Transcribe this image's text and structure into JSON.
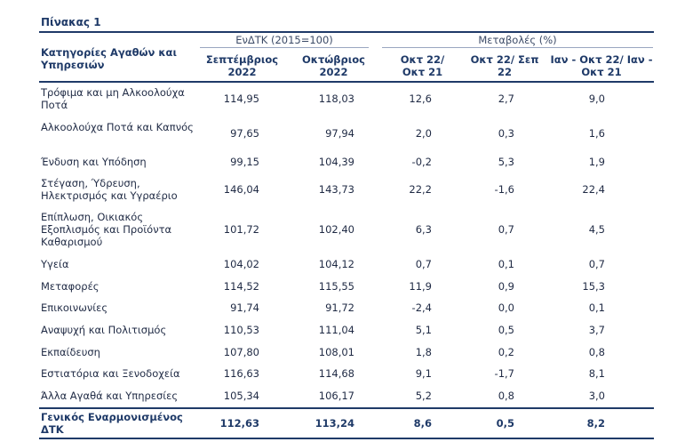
{
  "title": "Πίνακας 1",
  "header": {
    "category": "Κατηγορίες Αγαθών και Υπηρεσιών",
    "group_index": "ΕνΔΤΚ (2015=100)",
    "group_changes": "Μεταβολές (%)",
    "cols": [
      "Σεπτέμβριος 2022",
      "Οκτώβριος 2022",
      "Οκτ 22/ Οκτ 21",
      "Οκτ 22/ Σεπ 22",
      "Ιαν - Οκτ 22/ Ιαν - Οκτ 21"
    ]
  },
  "rows": [
    {
      "label": "Τρόφιμα και μη Αλκοολούχα Ποτά",
      "v": [
        "114,95",
        "118,03",
        "12,6",
        "2,7",
        "9,0"
      ]
    },
    {
      "label": "Αλκοολούχα Ποτά και Καπνός",
      "v": [
        "97,65",
        "97,94",
        "2,0",
        "0,3",
        "1,6"
      ]
    },
    {
      "label": "Ένδυση και Υπόδηση",
      "v": [
        "99,15",
        "104,39",
        "-0,2",
        "5,3",
        "1,9"
      ]
    },
    {
      "label": "Στέγαση, Ύδρευση, Ηλεκτρισμός και Υγραέριο",
      "v": [
        "146,04",
        "143,73",
        "22,2",
        "-1,6",
        "22,4"
      ]
    },
    {
      "label": "Επίπλωση, Οικιακός Εξοπλισμός και Προϊόντα Καθαρισμού",
      "v": [
        "101,72",
        "102,40",
        "6,3",
        "0,7",
        "4,5"
      ]
    },
    {
      "label": "Υγεία",
      "v": [
        "104,02",
        "104,12",
        "0,7",
        "0,1",
        "0,7"
      ]
    },
    {
      "label": "Μεταφορές",
      "v": [
        "114,52",
        "115,55",
        "11,9",
        "0,9",
        "15,3"
      ]
    },
    {
      "label": "Επικοινωνίες",
      "v": [
        "91,74",
        "91,72",
        "-2,4",
        "0,0",
        "0,1"
      ]
    },
    {
      "label": "Αναψυχή και Πολιτισμός",
      "v": [
        "110,53",
        "111,04",
        "5,1",
        "0,5",
        "3,7"
      ]
    },
    {
      "label": "Εκπαίδευση",
      "v": [
        "107,80",
        "108,01",
        "1,8",
        "0,2",
        "0,8"
      ]
    },
    {
      "label": "Εστιατόρια και Ξενοδοχεία",
      "v": [
        "116,63",
        "114,68",
        "9,1",
        "-1,7",
        "8,1"
      ]
    },
    {
      "label": "Άλλα Αγαθά και Υπηρεσίες",
      "v": [
        "105,34",
        "106,17",
        "5,2",
        "0,8",
        "3,0"
      ]
    }
  ],
  "total": {
    "label": "Γενικός Εναρμονισμένος ΔΤΚ",
    "v": [
      "112,63",
      "113,24",
      "8,6",
      "0,5",
      "8,2"
    ]
  }
}
